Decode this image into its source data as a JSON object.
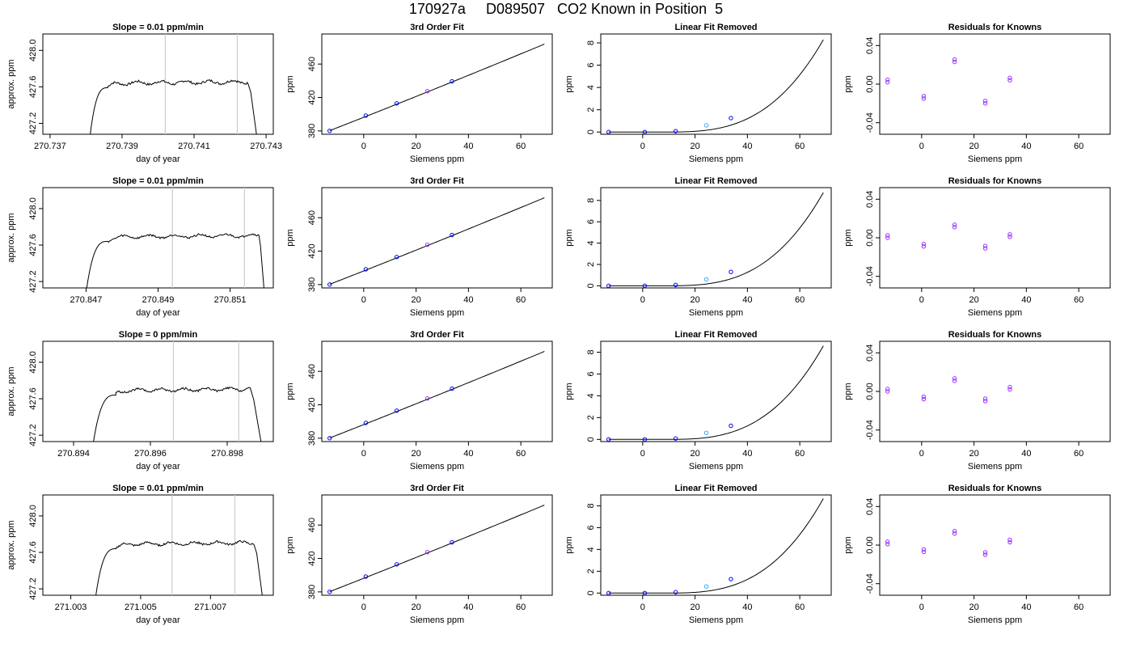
{
  "figure": {
    "title": "170927a     D089507   CO2 Known in Position  5",
    "axis_color": "#000000",
    "marker_color_primary": "#0000ff",
    "marker_color_secondary": "#9933ff",
    "highlight_color": "#33aaff",
    "reference_line_color": "#cccccc"
  },
  "chart_data": [
    {
      "row": 0,
      "type": "line",
      "title": "Slope =  0.01  ppm/min",
      "xlabel": "day of year",
      "ylabel": "approx. ppm",
      "xlim": [
        270.7368,
        270.7432
      ],
      "ylim": [
        427.08,
        428.18
      ],
      "x_ticks": [
        270.737,
        270.739,
        270.741,
        270.743
      ],
      "x_tick_labels": [
        "270.737",
        "270.739",
        "270.741",
        "270.743"
      ],
      "y_ticks": [
        427.2,
        427.6,
        428.0
      ],
      "y_tick_labels": [
        "427.2",
        "427.6",
        "428.0"
      ],
      "ref_lines_x": [
        270.7402,
        270.7422
      ],
      "trace": {
        "x_start": 270.7381,
        "rise_x": 270.7383,
        "plateau_start_x": 270.7386,
        "plateau_end_x": 270.7425,
        "x_end": 270.74275,
        "low": 427.03,
        "plateau": 427.64,
        "amp": 0.018
      }
    },
    {
      "row": 0,
      "type": "scatter",
      "title": "3rd Order Fit",
      "xlabel": "Siemens ppm",
      "ylabel": "ppm",
      "xlim": [
        -16,
        72
      ],
      "ylim": [
        376,
        496
      ],
      "x_ticks": [
        0,
        20,
        40,
        60
      ],
      "x_tick_labels": [
        "0",
        "20",
        "40",
        "60"
      ],
      "y_ticks": [
        380,
        420,
        460
      ],
      "y_tick_labels": [
        "380",
        "420",
        "460"
      ],
      "points_x": [
        -13,
        0.8,
        12.6,
        24.3,
        33.7
      ],
      "points_y": [
        380.1,
        398.3,
        413.0,
        427.6,
        439.3
      ],
      "curve": {
        "a": 396.3,
        "b": 1.2362,
        "c": 0.00048,
        "x_from": -13,
        "x_to": 69
      }
    },
    {
      "row": 0,
      "type": "scatter",
      "title": "Linear Fit Removed",
      "xlabel": "Siemens ppm",
      "ylabel": "ppm",
      "xlim": [
        -16,
        72
      ],
      "ylim": [
        -0.2,
        8.8
      ],
      "x_ticks": [
        0,
        20,
        40,
        60
      ],
      "x_tick_labels": [
        "0",
        "20",
        "40",
        "60"
      ],
      "y_ticks": [
        0,
        2,
        4,
        6,
        8
      ],
      "y_tick_labels": [
        "0",
        "2",
        "4",
        "6",
        "8"
      ],
      "points_x": [
        -13,
        0.8,
        12.6,
        24.3,
        33.7
      ],
      "points_y": [
        0.0,
        0.0,
        0.08,
        0.6,
        1.25
      ],
      "curve": {
        "k": 3.65e-05,
        "x0": 8,
        "x_from": -13,
        "x_to": 69
      }
    },
    {
      "row": 0,
      "type": "scatter",
      "title": "Residuals for Knowns",
      "xlabel": "Siemens ppm",
      "ylabel": "ppm",
      "xlim": [
        -16,
        72
      ],
      "ylim": [
        -0.052,
        0.052
      ],
      "x_ticks": [
        0,
        20,
        40,
        60
      ],
      "x_tick_labels": [
        "0",
        "20",
        "40",
        "60"
      ],
      "y_ticks": [
        -0.04,
        0.0,
        0.04
      ],
      "y_tick_labels": [
        "-0.04",
        "0.00",
        "0.04"
      ],
      "points_x": [
        -13,
        0.8,
        12.6,
        24.3,
        33.7
      ],
      "points_y": [
        0.002,
        -0.015,
        0.023,
        -0.02,
        0.004
      ]
    },
    {
      "row": 1,
      "type": "line",
      "title": "Slope =  0.01  ppm/min",
      "xlabel": "day of year",
      "ylabel": "approx. ppm",
      "xlim": [
        270.8458,
        270.8522
      ],
      "ylim": [
        427.13,
        428.23
      ],
      "x_ticks": [
        270.847,
        270.849,
        270.851
      ],
      "x_tick_labels": [
        "270.847",
        "270.849",
        "270.851"
      ],
      "y_ticks": [
        427.2,
        427.6,
        428.0
      ],
      "y_tick_labels": [
        "427.2",
        "427.6",
        "428.0"
      ],
      "ref_lines_x": [
        270.8494,
        270.8514
      ],
      "trace": {
        "x_start": 270.847,
        "rise_x": 270.8472,
        "plateau_start_x": 270.8476,
        "plateau_end_x": 270.8518,
        "x_end": 270.85195,
        "low": 427.08,
        "plateau": 427.69,
        "amp": 0.016
      }
    },
    {
      "row": 1,
      "type": "scatter",
      "title": "3rd Order Fit",
      "xlabel": "Siemens ppm",
      "ylabel": "ppm",
      "xlim": [
        -16,
        72
      ],
      "ylim": [
        376,
        496
      ],
      "x_ticks": [
        0,
        20,
        40,
        60
      ],
      "x_tick_labels": [
        "0",
        "20",
        "40",
        "60"
      ],
      "y_ticks": [
        380,
        420,
        460
      ],
      "y_tick_labels": [
        "380",
        "420",
        "460"
      ],
      "points_x": [
        -13,
        0.8,
        12.6,
        24.3,
        33.7
      ],
      "points_y": [
        380.1,
        398.3,
        413.0,
        427.6,
        439.3
      ],
      "curve": {
        "a": 396.3,
        "b": 1.2362,
        "c": 0.00048,
        "x_from": -13,
        "x_to": 69
      }
    },
    {
      "row": 1,
      "type": "scatter",
      "title": "Linear Fit Removed",
      "xlabel": "Siemens ppm",
      "ylabel": "ppm",
      "xlim": [
        -16,
        72
      ],
      "ylim": [
        -0.2,
        9.2
      ],
      "x_ticks": [
        0,
        20,
        40,
        60
      ],
      "x_tick_labels": [
        "0",
        "20",
        "40",
        "60"
      ],
      "y_ticks": [
        0,
        2,
        4,
        6,
        8
      ],
      "y_tick_labels": [
        "0",
        "2",
        "4",
        "6",
        "8"
      ],
      "points_x": [
        -13,
        0.8,
        12.6,
        24.3,
        33.7
      ],
      "points_y": [
        0.0,
        0.0,
        0.08,
        0.6,
        1.3
      ],
      "curve": {
        "k": 3.85e-05,
        "x0": 8,
        "x_from": -13,
        "x_to": 69
      }
    },
    {
      "row": 1,
      "type": "scatter",
      "title": "Residuals for Knowns",
      "xlabel": "Siemens ppm",
      "ylabel": "ppm",
      "xlim": [
        -16,
        72
      ],
      "ylim": [
        -0.052,
        0.052
      ],
      "x_ticks": [
        0,
        20,
        40,
        60
      ],
      "x_tick_labels": [
        "0",
        "20",
        "40",
        "60"
      ],
      "y_ticks": [
        -0.04,
        0.0,
        0.04
      ],
      "y_tick_labels": [
        "-0.04",
        "0.00",
        "0.04"
      ],
      "points_x": [
        -13,
        0.8,
        12.6,
        24.3,
        33.7
      ],
      "points_y": [
        0.0,
        -0.009,
        0.011,
        -0.011,
        0.001
      ]
    },
    {
      "row": 2,
      "type": "line",
      "title": "Slope =  0  ppm/min",
      "xlabel": "day of year",
      "ylabel": "approx. ppm",
      "xlim": [
        270.8932,
        270.8992
      ],
      "ylim": [
        427.13,
        428.23
      ],
      "x_ticks": [
        270.894,
        270.896,
        270.898
      ],
      "x_tick_labels": [
        "270.894",
        "270.896",
        "270.898"
      ],
      "y_ticks": [
        427.2,
        427.6,
        428.0
      ],
      "y_tick_labels": [
        "427.2",
        "427.6",
        "428.0"
      ],
      "ref_lines_x": [
        270.8966,
        270.8983
      ],
      "trace": {
        "x_start": 270.8945,
        "rise_x": 270.8947,
        "plateau_start_x": 270.8951,
        "plateau_end_x": 270.8986,
        "x_end": 270.8989,
        "low": 427.08,
        "plateau": 427.69,
        "amp": 0.016
      }
    },
    {
      "row": 2,
      "type": "scatter",
      "title": "3rd Order Fit",
      "xlabel": "Siemens ppm",
      "ylabel": "ppm",
      "xlim": [
        -16,
        72
      ],
      "ylim": [
        376,
        496
      ],
      "x_ticks": [
        0,
        20,
        40,
        60
      ],
      "x_tick_labels": [
        "0",
        "20",
        "40",
        "60"
      ],
      "y_ticks": [
        380,
        420,
        460
      ],
      "y_tick_labels": [
        "380",
        "420",
        "460"
      ],
      "points_x": [
        -13,
        0.8,
        12.6,
        24.3,
        33.7
      ],
      "points_y": [
        380.1,
        398.3,
        413.0,
        427.6,
        439.3
      ],
      "curve": {
        "a": 396.3,
        "b": 1.2362,
        "c": 0.00048,
        "x_from": -13,
        "x_to": 69
      }
    },
    {
      "row": 2,
      "type": "scatter",
      "title": "Linear Fit Removed",
      "xlabel": "Siemens ppm",
      "ylabel": "ppm",
      "xlim": [
        -16,
        72
      ],
      "ylim": [
        -0.2,
        9.0
      ],
      "x_ticks": [
        0,
        20,
        40,
        60
      ],
      "x_tick_labels": [
        "0",
        "20",
        "40",
        "60"
      ],
      "y_ticks": [
        0,
        2,
        4,
        6,
        8
      ],
      "y_tick_labels": [
        "0",
        "2",
        "4",
        "6",
        "8"
      ],
      "points_x": [
        -13,
        0.8,
        12.6,
        24.3,
        33.7
      ],
      "points_y": [
        0.0,
        0.0,
        0.08,
        0.6,
        1.25
      ],
      "curve": {
        "k": 3.78e-05,
        "x0": 8,
        "x_from": -13,
        "x_to": 69
      }
    },
    {
      "row": 2,
      "type": "scatter",
      "title": "Residuals for Knowns",
      "xlabel": "Siemens ppm",
      "ylabel": "ppm",
      "xlim": [
        -16,
        72
      ],
      "ylim": [
        -0.052,
        0.052
      ],
      "x_ticks": [
        0,
        20,
        40,
        60
      ],
      "x_tick_labels": [
        "0",
        "20",
        "40",
        "60"
      ],
      "y_ticks": [
        -0.04,
        0.0,
        0.04
      ],
      "y_tick_labels": [
        "-0.04",
        "0.00",
        "0.04"
      ],
      "points_x": [
        -13,
        0.8,
        12.6,
        24.3,
        33.7
      ],
      "points_y": [
        0.0,
        -0.008,
        0.011,
        -0.01,
        0.002
      ]
    },
    {
      "row": 3,
      "type": "line",
      "title": "Slope =  0.01  ppm/min",
      "xlabel": "day of year",
      "ylabel": "approx. ppm",
      "xlim": [
        271.0022,
        271.0088
      ],
      "ylim": [
        427.13,
        428.23
      ],
      "x_ticks": [
        271.003,
        271.005,
        271.007
      ],
      "x_tick_labels": [
        "271.003",
        "271.005",
        "271.007"
      ],
      "y_ticks": [
        427.2,
        427.6,
        428.0
      ],
      "y_tick_labels": [
        "427.2",
        "427.6",
        "428.0"
      ],
      "ref_lines_x": [
        271.0059,
        271.0077
      ],
      "trace": {
        "x_start": 271.0037,
        "rise_x": 271.0039,
        "plateau_start_x": 271.0043,
        "plateau_end_x": 271.00825,
        "x_end": 271.0085,
        "low": 427.08,
        "plateau": 427.69,
        "amp": 0.016
      }
    },
    {
      "row": 3,
      "type": "scatter",
      "title": "3rd Order Fit",
      "xlabel": "Siemens ppm",
      "ylabel": "ppm",
      "xlim": [
        -16,
        72
      ],
      "ylim": [
        376,
        496
      ],
      "x_ticks": [
        0,
        20,
        40,
        60
      ],
      "x_tick_labels": [
        "0",
        "20",
        "40",
        "60"
      ],
      "y_ticks": [
        380,
        420,
        460
      ],
      "y_tick_labels": [
        "380",
        "420",
        "460"
      ],
      "points_x": [
        -13,
        0.8,
        12.6,
        24.3,
        33.7
      ],
      "points_y": [
        380.1,
        398.3,
        413.0,
        427.6,
        439.3
      ],
      "curve": {
        "a": 396.3,
        "b": 1.2362,
        "c": 0.00048,
        "x_from": -13,
        "x_to": 69
      }
    },
    {
      "row": 3,
      "type": "scatter",
      "title": "Linear Fit Removed",
      "xlabel": "Siemens ppm",
      "ylabel": "ppm",
      "xlim": [
        -16,
        72
      ],
      "ylim": [
        -0.2,
        9.0
      ],
      "x_ticks": [
        0,
        20,
        40,
        60
      ],
      "x_tick_labels": [
        "0",
        "20",
        "40",
        "60"
      ],
      "y_ticks": [
        0,
        2,
        4,
        6,
        8
      ],
      "y_tick_labels": [
        "0",
        "2",
        "4",
        "6",
        "8"
      ],
      "points_x": [
        -13,
        0.8,
        12.6,
        24.3,
        33.7
      ],
      "points_y": [
        0.0,
        0.0,
        0.08,
        0.6,
        1.28
      ],
      "curve": {
        "k": 3.82e-05,
        "x0": 8,
        "x_from": -13,
        "x_to": 69
      }
    },
    {
      "row": 3,
      "type": "scatter",
      "title": "Residuals for Knowns",
      "xlabel": "Siemens ppm",
      "ylabel": "ppm",
      "xlim": [
        -16,
        72
      ],
      "ylim": [
        -0.052,
        0.052
      ],
      "x_ticks": [
        0,
        20,
        40,
        60
      ],
      "x_tick_labels": [
        "0",
        "20",
        "40",
        "60"
      ],
      "y_ticks": [
        -0.04,
        0.0,
        0.04
      ],
      "y_tick_labels": [
        "-0.04",
        "0.00",
        "0.04"
      ],
      "points_x": [
        -13,
        0.8,
        12.6,
        24.3,
        33.7
      ],
      "points_y": [
        0.001,
        -0.007,
        0.012,
        -0.01,
        0.003
      ]
    }
  ]
}
